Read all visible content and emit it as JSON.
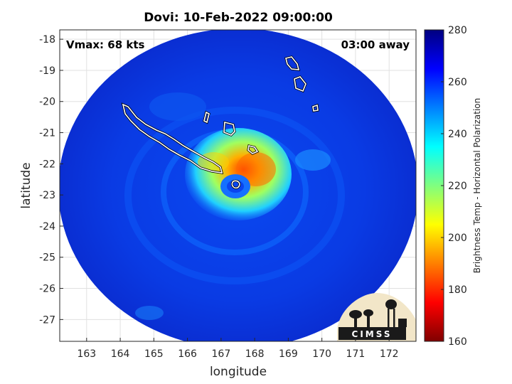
{
  "title": "Dovi: 10-Feb-2022 09:00:00",
  "vmax_label": "Vmax: 68 kts",
  "time_label": "03:00 away",
  "xlabel": "longitude",
  "ylabel": "latitude",
  "x_ticks": [
    "163",
    "164",
    "165",
    "166",
    "167",
    "168",
    "169",
    "170",
    "171",
    "172"
  ],
  "y_ticks": [
    "-18",
    "-19",
    "-20",
    "-21",
    "-22",
    "-23",
    "-24",
    "-25",
    "-26",
    "-27"
  ],
  "colorbar": {
    "label": "Brightness Temp - Horizontal Polarization",
    "ticks": [
      "160",
      "180",
      "200",
      "220",
      "240",
      "260",
      "280"
    ],
    "range": [
      160,
      280
    ],
    "colormap": "jet"
  },
  "logo": {
    "text": "CIMSS"
  },
  "colors": {
    "background_field": "#0a3ee8",
    "outer_disk": "#0a2fd6",
    "land_outline": "#ffffff",
    "eye": "#1a8cff"
  },
  "map_extent": {
    "lon": [
      162.2,
      172.8
    ],
    "lat": [
      -27.7,
      -17.7
    ]
  },
  "storm_center": {
    "lon": 167.3,
    "lat": -22.7
  }
}
